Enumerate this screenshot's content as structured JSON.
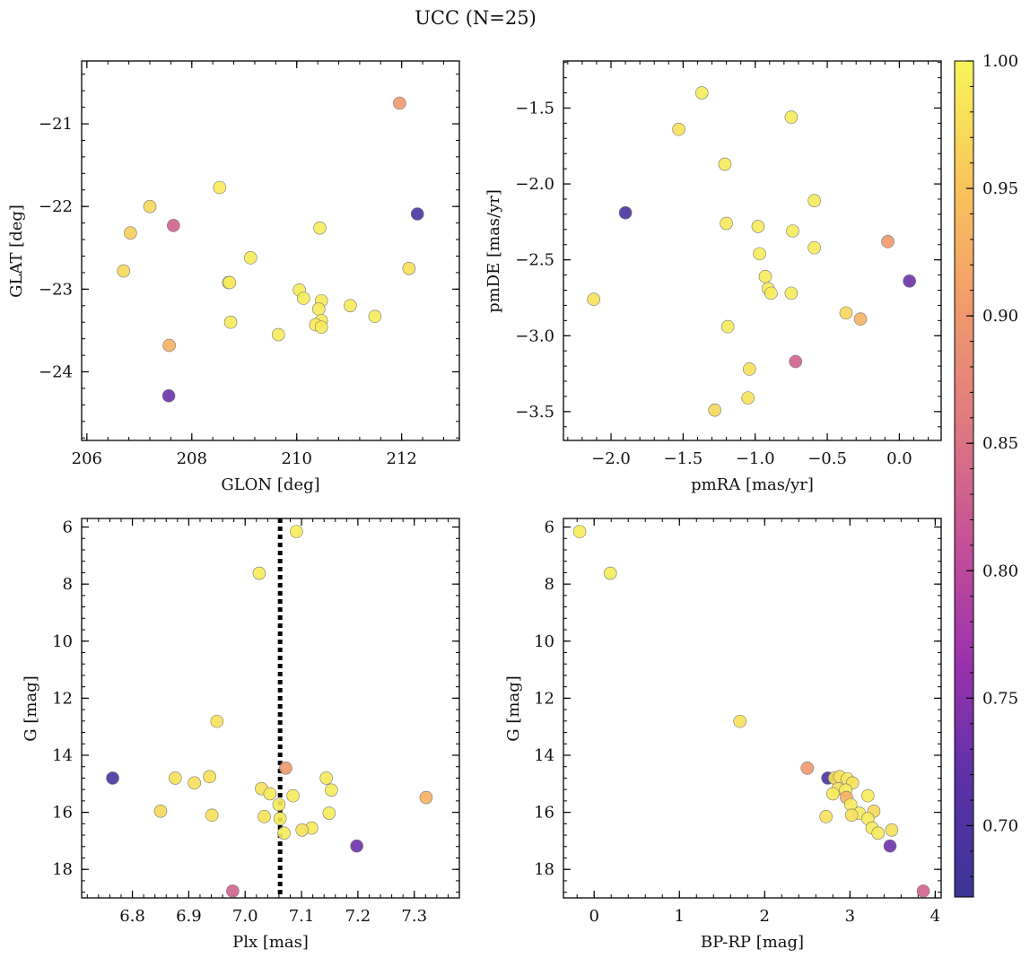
{
  "title": "UCC (N=25)",
  "colorbar": {
    "colormap": "plasma",
    "vmin": 0.672,
    "vmax": 1.0,
    "ticks": [
      0.7,
      0.75,
      0.8,
      0.85,
      0.9,
      0.95,
      1.0
    ],
    "tick_labels": [
      "0.70",
      "0.75",
      "0.80",
      "0.85",
      "0.90",
      "0.95",
      "1.00"
    ]
  },
  "chart_data": [
    {
      "type": "scatter",
      "panel": "top-left",
      "xlabel": "GLON [deg]",
      "ylabel": "GLAT [deg]",
      "xlim": [
        205.9,
        213.1
      ],
      "ylim": [
        -24.83,
        -20.24
      ],
      "y_inverted": false,
      "xticks": [
        206,
        208,
        210,
        212
      ],
      "xtick_labels": [
        "206",
        "208",
        "210",
        "212"
      ],
      "yticks": [
        -24,
        -23,
        -22,
        -21
      ],
      "ytick_labels": [
        "−24",
        "−23",
        "−22",
        "−21"
      ],
      "points": [
        {
          "x": 211.96,
          "y": -20.75,
          "c": 0.9
        },
        {
          "x": 208.53,
          "y": -21.77,
          "c": 0.99
        },
        {
          "x": 207.2,
          "y": -22.0,
          "c": 0.97
        },
        {
          "x": 212.3,
          "y": -22.09,
          "c": 0.69
        },
        {
          "x": 207.65,
          "y": -22.23,
          "c": 0.83
        },
        {
          "x": 210.44,
          "y": -22.26,
          "c": 0.99
        },
        {
          "x": 206.83,
          "y": -22.32,
          "c": 0.96
        },
        {
          "x": 209.12,
          "y": -22.62,
          "c": 0.99
        },
        {
          "x": 212.14,
          "y": -22.75,
          "c": 0.98
        },
        {
          "x": 206.7,
          "y": -22.78,
          "c": 0.97
        },
        {
          "x": 208.7,
          "y": -22.92,
          "c": 0.98
        },
        {
          "x": 210.05,
          "y": -23.01,
          "c": 0.99
        },
        {
          "x": 210.13,
          "y": -23.11,
          "c": 0.99
        },
        {
          "x": 210.47,
          "y": -23.14,
          "c": 0.99
        },
        {
          "x": 211.02,
          "y": -23.2,
          "c": 0.99
        },
        {
          "x": 210.42,
          "y": -23.24,
          "c": 0.99
        },
        {
          "x": 211.49,
          "y": -23.33,
          "c": 0.99
        },
        {
          "x": 210.47,
          "y": -23.38,
          "c": 0.99
        },
        {
          "x": 208.74,
          "y": -23.4,
          "c": 0.99
        },
        {
          "x": 210.36,
          "y": -23.43,
          "c": 0.99
        },
        {
          "x": 210.47,
          "y": -23.46,
          "c": 0.99
        },
        {
          "x": 209.65,
          "y": -23.55,
          "c": 0.99
        },
        {
          "x": 207.57,
          "y": -23.68,
          "c": 0.93
        },
        {
          "x": 207.56,
          "y": -24.29,
          "c": 0.73
        },
        {
          "x": 208.72,
          "y": -22.92,
          "c": 0.99
        }
      ]
    },
    {
      "type": "scatter",
      "panel": "top-right",
      "xlabel": "pmRA [mas/yr]",
      "ylabel": "pmDE [mas/yr]",
      "xlim": [
        -2.33,
        0.29
      ],
      "ylim": [
        -3.69,
        -1.19
      ],
      "y_inverted": false,
      "xticks": [
        -2.0,
        -1.5,
        -1.0,
        -0.5,
        0.0
      ],
      "xtick_labels": [
        "−2.0",
        "−1.5",
        "−1.0",
        "−0.5",
        "0.0"
      ],
      "yticks": [
        -3.5,
        -3.0,
        -2.5,
        -2.0,
        -1.5
      ],
      "ytick_labels": [
        "−3.5",
        "−3.0",
        "−2.5",
        "−2.0",
        "−1.5"
      ],
      "points": [
        {
          "x": -1.37,
          "y": -1.4,
          "c": 0.99
        },
        {
          "x": -0.75,
          "y": -1.56,
          "c": 0.99
        },
        {
          "x": -1.53,
          "y": -1.64,
          "c": 0.98
        },
        {
          "x": -1.21,
          "y": -1.87,
          "c": 0.99
        },
        {
          "x": -0.59,
          "y": -2.11,
          "c": 0.99
        },
        {
          "x": -1.9,
          "y": -2.19,
          "c": 0.69
        },
        {
          "x": -1.2,
          "y": -2.26,
          "c": 0.99
        },
        {
          "x": -0.98,
          "y": -2.28,
          "c": 0.99
        },
        {
          "x": -0.74,
          "y": -2.31,
          "c": 0.99
        },
        {
          "x": -0.08,
          "y": -2.38,
          "c": 0.9
        },
        {
          "x": -0.59,
          "y": -2.42,
          "c": 0.99
        },
        {
          "x": -0.97,
          "y": -2.46,
          "c": 0.99
        },
        {
          "x": 0.07,
          "y": -2.64,
          "c": 0.73
        },
        {
          "x": -0.93,
          "y": -2.61,
          "c": 0.99
        },
        {
          "x": -0.91,
          "y": -2.69,
          "c": 0.99
        },
        {
          "x": -2.12,
          "y": -2.76,
          "c": 0.98
        },
        {
          "x": -0.75,
          "y": -2.72,
          "c": 0.99
        },
        {
          "x": -0.89,
          "y": -2.72,
          "c": 0.99
        },
        {
          "x": -0.37,
          "y": -2.85,
          "c": 0.97
        },
        {
          "x": -0.27,
          "y": -2.89,
          "c": 0.93
        },
        {
          "x": -1.19,
          "y": -2.94,
          "c": 0.99
        },
        {
          "x": -0.72,
          "y": -3.17,
          "c": 0.83
        },
        {
          "x": -1.04,
          "y": -3.22,
          "c": 0.98
        },
        {
          "x": -1.05,
          "y": -3.41,
          "c": 0.98
        },
        {
          "x": -1.28,
          "y": -3.49,
          "c": 0.97
        }
      ]
    },
    {
      "type": "scatter",
      "panel": "bottom-left",
      "xlabel": "Plx [mas]",
      "ylabel": "G [mag]",
      "xlim": [
        6.71,
        7.38
      ],
      "ylim": [
        19.0,
        5.7
      ],
      "y_inverted": true,
      "vline": 7.062,
      "xticks": [
        6.8,
        6.9,
        7.0,
        7.1,
        7.2,
        7.3
      ],
      "xtick_labels": [
        "6.8",
        "6.9",
        "7.0",
        "7.1",
        "7.2",
        "7.3"
      ],
      "yticks": [
        6,
        8,
        10,
        12,
        14,
        16,
        18
      ],
      "ytick_labels": [
        "6",
        "8",
        "10",
        "12",
        "14",
        "16",
        "18"
      ],
      "points": [
        {
          "x": 7.091,
          "y": 6.16,
          "c": 0.99
        },
        {
          "x": 7.025,
          "y": 7.62,
          "c": 0.99
        },
        {
          "x": 6.95,
          "y": 12.81,
          "c": 0.98
        },
        {
          "x": 7.072,
          "y": 14.45,
          "c": 0.9
        },
        {
          "x": 6.765,
          "y": 14.8,
          "c": 0.69
        },
        {
          "x": 6.876,
          "y": 14.8,
          "c": 0.98
        },
        {
          "x": 6.937,
          "y": 14.75,
          "c": 0.98
        },
        {
          "x": 6.91,
          "y": 14.97,
          "c": 0.98
        },
        {
          "x": 7.144,
          "y": 14.8,
          "c": 0.99
        },
        {
          "x": 7.029,
          "y": 15.17,
          "c": 0.98
        },
        {
          "x": 7.044,
          "y": 15.35,
          "c": 0.99
        },
        {
          "x": 7.153,
          "y": 15.22,
          "c": 0.99
        },
        {
          "x": 7.085,
          "y": 15.42,
          "c": 0.99
        },
        {
          "x": 7.321,
          "y": 15.48,
          "c": 0.93
        },
        {
          "x": 7.06,
          "y": 15.73,
          "c": 0.99
        },
        {
          "x": 6.85,
          "y": 15.96,
          "c": 0.97
        },
        {
          "x": 7.149,
          "y": 16.03,
          "c": 0.99
        },
        {
          "x": 6.941,
          "y": 16.1,
          "c": 0.98
        },
        {
          "x": 7.034,
          "y": 16.15,
          "c": 0.98
        },
        {
          "x": 7.062,
          "y": 16.22,
          "c": 0.99
        },
        {
          "x": 7.118,
          "y": 16.55,
          "c": 0.99
        },
        {
          "x": 7.101,
          "y": 16.62,
          "c": 0.98
        },
        {
          "x": 7.069,
          "y": 16.73,
          "c": 0.99
        },
        {
          "x": 7.198,
          "y": 17.18,
          "c": 0.73
        },
        {
          "x": 6.978,
          "y": 18.76,
          "c": 0.83
        }
      ]
    },
    {
      "type": "scatter",
      "panel": "bottom-right",
      "xlabel": "BP-RP [mag]",
      "ylabel": "G [mag]",
      "xlim": [
        -0.36,
        4.07
      ],
      "ylim": [
        19.0,
        5.7
      ],
      "y_inverted": true,
      "xticks": [
        0,
        1,
        2,
        3,
        4
      ],
      "xtick_labels": [
        "0",
        "1",
        "2",
        "3",
        "4"
      ],
      "yticks": [
        6,
        8,
        10,
        12,
        14,
        16,
        18
      ],
      "ytick_labels": [
        "6",
        "8",
        "10",
        "12",
        "14",
        "16",
        "18"
      ],
      "points": [
        {
          "x": -0.17,
          "y": 6.16,
          "c": 0.99
        },
        {
          "x": 0.19,
          "y": 7.62,
          "c": 0.99
        },
        {
          "x": 1.71,
          "y": 12.81,
          "c": 0.98
        },
        {
          "x": 2.5,
          "y": 14.45,
          "c": 0.9
        },
        {
          "x": 2.74,
          "y": 14.8,
          "c": 0.69
        },
        {
          "x": 2.82,
          "y": 14.8,
          "c": 0.98
        },
        {
          "x": 2.88,
          "y": 14.75,
          "c": 0.98
        },
        {
          "x": 2.97,
          "y": 14.83,
          "c": 0.99
        },
        {
          "x": 3.03,
          "y": 14.97,
          "c": 0.98
        },
        {
          "x": 2.86,
          "y": 15.17,
          "c": 0.98
        },
        {
          "x": 2.95,
          "y": 15.22,
          "c": 0.99
        },
        {
          "x": 2.8,
          "y": 15.35,
          "c": 0.99
        },
        {
          "x": 3.21,
          "y": 15.42,
          "c": 0.99
        },
        {
          "x": 2.96,
          "y": 15.48,
          "c": 0.93
        },
        {
          "x": 3.01,
          "y": 15.73,
          "c": 0.99
        },
        {
          "x": 3.28,
          "y": 15.96,
          "c": 0.97
        },
        {
          "x": 3.11,
          "y": 16.03,
          "c": 0.99
        },
        {
          "x": 3.02,
          "y": 16.1,
          "c": 0.98
        },
        {
          "x": 2.72,
          "y": 16.15,
          "c": 0.98
        },
        {
          "x": 3.21,
          "y": 16.22,
          "c": 0.99
        },
        {
          "x": 3.26,
          "y": 16.55,
          "c": 0.99
        },
        {
          "x": 3.49,
          "y": 16.62,
          "c": 0.98
        },
        {
          "x": 3.33,
          "y": 16.73,
          "c": 0.99
        },
        {
          "x": 3.47,
          "y": 17.18,
          "c": 0.73
        },
        {
          "x": 3.86,
          "y": 18.76,
          "c": 0.83
        }
      ]
    }
  ]
}
